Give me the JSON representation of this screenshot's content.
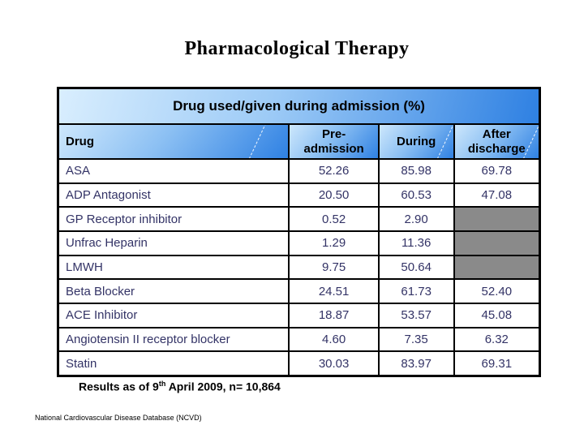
{
  "slide_title": "Pharmacological Therapy",
  "table": {
    "caption": "Drug used/given during admission (%)",
    "columns": [
      "Drug",
      "Pre-\nadmission",
      "During",
      "After\ndischarge"
    ],
    "rows": [
      {
        "drug": "ASA",
        "pre": "52.26",
        "during": "85.98",
        "after": "69.78"
      },
      {
        "drug": "ADP Antagonist",
        "pre": "20.50",
        "during": "60.53",
        "after": "47.08"
      },
      {
        "drug": "GP Receptor inhibitor",
        "pre": "0.52",
        "during": "2.90",
        "after": null
      },
      {
        "drug": "Unfrac Heparin",
        "pre": "1.29",
        "during": "11.36",
        "after": null
      },
      {
        "drug": "LMWH",
        "pre": "9.75",
        "during": "50.64",
        "after": null
      },
      {
        "drug": "Beta Blocker",
        "pre": "24.51",
        "during": "61.73",
        "after": "52.40"
      },
      {
        "drug": "ACE Inhibitor",
        "pre": "18.87",
        "during": "53.57",
        "after": "45.08"
      },
      {
        "drug": "Angiotensin II receptor blocker",
        "pre": "4.60",
        "during": "7.35",
        "after": "6.32"
      },
      {
        "drug": "Statin",
        "pre": "30.03",
        "during": "83.97",
        "after": "69.31"
      }
    ]
  },
  "footer": {
    "results_prefix": "Results as of 9",
    "results_superscript": "th",
    "results_suffix": " April 2009, n= 10,864"
  },
  "source_note": "National Cardiovascular Disease Database (NCVD)",
  "colors": {
    "header_gradient_light": "#d9eefe",
    "header_gradient_dark": "#2e80e2",
    "data_text": "#333366",
    "empty_cell_gray": "#8a8a8a",
    "table_border": "#000000"
  }
}
